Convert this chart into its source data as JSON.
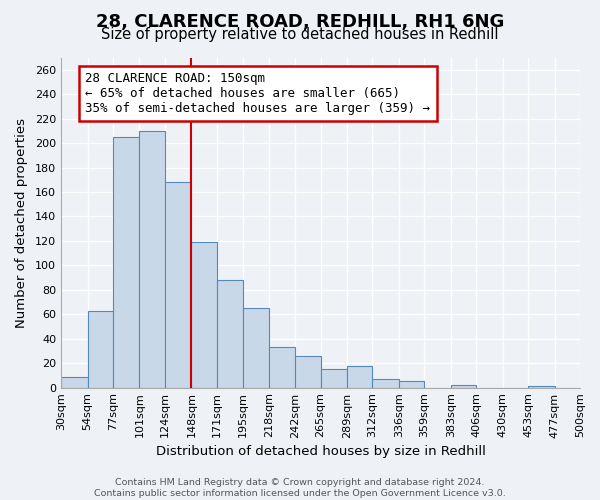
{
  "title": "28, CLARENCE ROAD, REDHILL, RH1 6NG",
  "subtitle": "Size of property relative to detached houses in Redhill",
  "xlabel": "Distribution of detached houses by size in Redhill",
  "ylabel": "Number of detached properties",
  "bin_labels": [
    "30sqm",
    "54sqm",
    "77sqm",
    "101sqm",
    "124sqm",
    "148sqm",
    "171sqm",
    "195sqm",
    "218sqm",
    "242sqm",
    "265sqm",
    "289sqm",
    "312sqm",
    "336sqm",
    "359sqm",
    "383sqm",
    "406sqm",
    "430sqm",
    "453sqm",
    "477sqm",
    "500sqm"
  ],
  "bin_edges": [
    30,
    54,
    77,
    101,
    124,
    148,
    171,
    195,
    218,
    242,
    265,
    289,
    312,
    336,
    359,
    383,
    406,
    430,
    453,
    477,
    500
  ],
  "bar_heights": [
    9,
    63,
    205,
    210,
    168,
    119,
    88,
    65,
    33,
    26,
    15,
    18,
    7,
    5,
    0,
    2,
    0,
    0,
    1,
    0
  ],
  "bar_color": "#c8d8e8",
  "bar_edge_color": "#5588bb",
  "ylim": [
    0,
    270
  ],
  "yticks": [
    0,
    20,
    40,
    60,
    80,
    100,
    120,
    140,
    160,
    180,
    200,
    220,
    240,
    260
  ],
  "vline_x": 148,
  "vline_color": "#cc0000",
  "annotation_title": "28 CLARENCE ROAD: 150sqm",
  "annotation_line1": "← 65% of detached houses are smaller (665)",
  "annotation_line2": "35% of semi-detached houses are larger (359) →",
  "annotation_box_color": "#cc0000",
  "footer_line1": "Contains HM Land Registry data © Crown copyright and database right 2024.",
  "footer_line2": "Contains public sector information licensed under the Open Government Licence v3.0.",
  "background_color": "#eef2f7",
  "grid_color": "#ffffff",
  "title_fontsize": 13,
  "subtitle_fontsize": 10.5,
  "axis_label_fontsize": 9.5,
  "tick_fontsize": 8,
  "annotation_fontsize": 9,
  "footer_fontsize": 6.8
}
